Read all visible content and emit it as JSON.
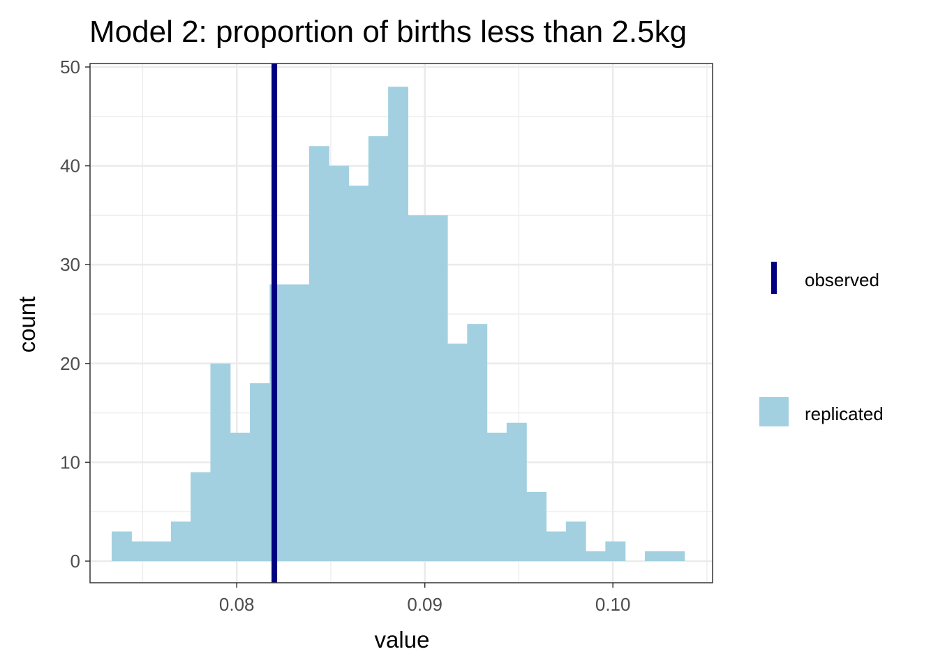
{
  "chart_data": {
    "type": "bar",
    "title": "Model 2: proportion of births less than 2.5kg",
    "xlabel": "value",
    "ylabel": "count",
    "xlim": [
      0.0722,
      0.1053
    ],
    "ylim": [
      0,
      50
    ],
    "x_ticks": [
      {
        "value": 0.08,
        "label": "0.08"
      },
      {
        "value": 0.09,
        "label": "0.09"
      },
      {
        "value": 0.1,
        "label": "0.10"
      }
    ],
    "y_ticks": [
      {
        "value": 0,
        "label": "0"
      },
      {
        "value": 10,
        "label": "10"
      },
      {
        "value": 20,
        "label": "20"
      },
      {
        "value": 30,
        "label": "30"
      },
      {
        "value": 40,
        "label": "40"
      },
      {
        "value": 50,
        "label": "50"
      }
    ],
    "bin_start": 0.07335,
    "bin_width": 0.00105,
    "counts": [
      3,
      2,
      2,
      4,
      9,
      20,
      13,
      18,
      28,
      28,
      42,
      40,
      38,
      43,
      48,
      35,
      35,
      22,
      24,
      13,
      14,
      7,
      3,
      4,
      1,
      2,
      0,
      1,
      1
    ],
    "observed": 0.082,
    "series": [
      {
        "name": "observed",
        "kind": "vline",
        "color": "#000080"
      },
      {
        "name": "replicated",
        "kind": "histogram",
        "color": "#a2d0e0"
      }
    ],
    "grid": true,
    "legend_position": "right"
  }
}
